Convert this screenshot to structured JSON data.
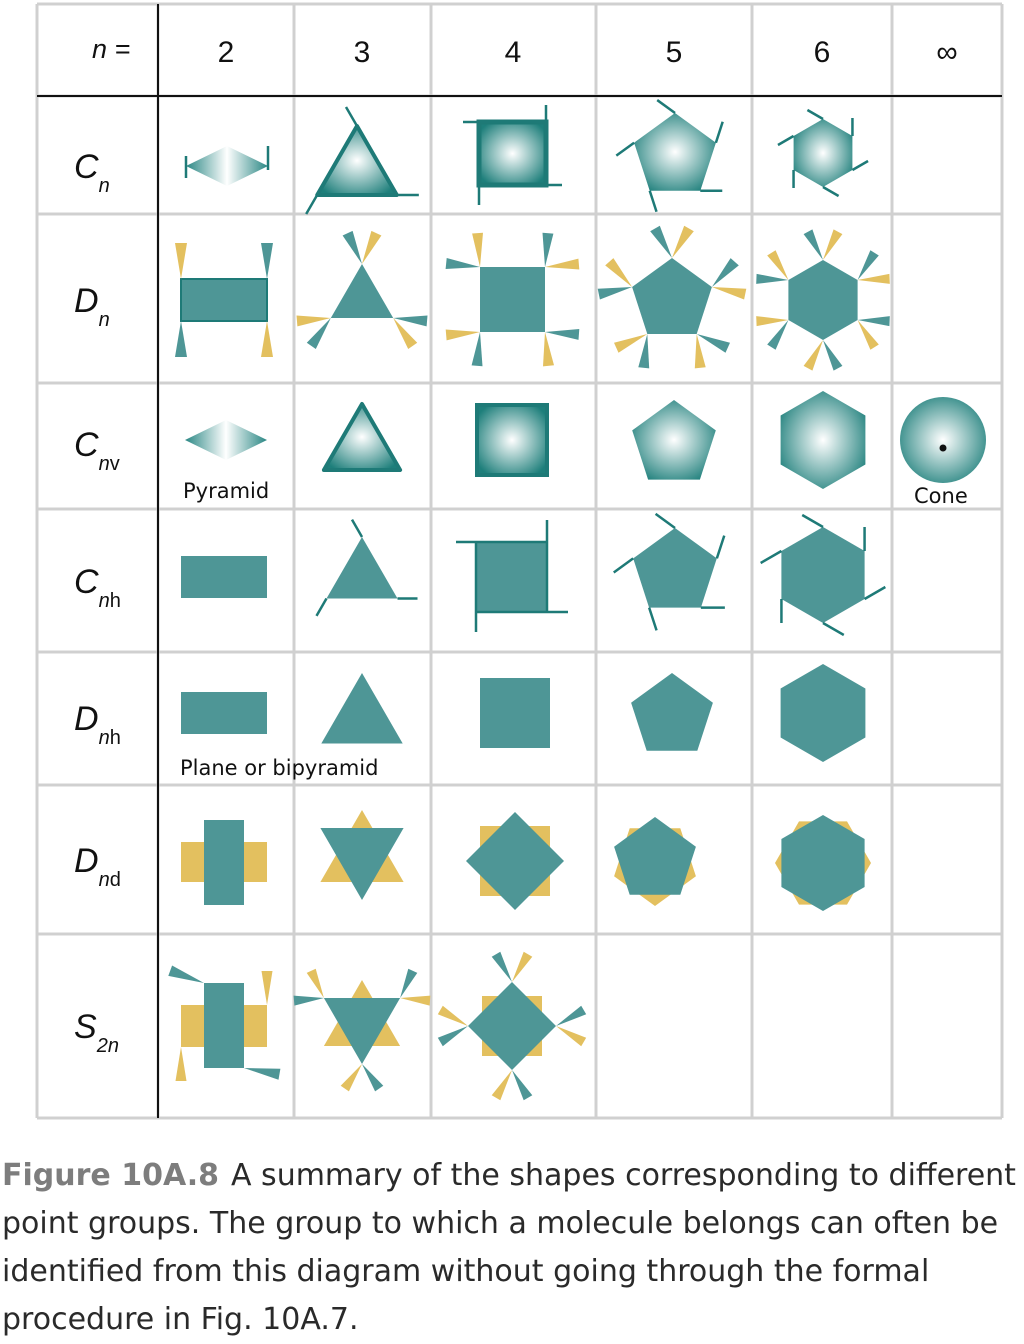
{
  "header": {
    "n_label": "n =",
    "columns": [
      "2",
      "3",
      "4",
      "5",
      "6",
      "∞"
    ]
  },
  "rows": [
    {
      "id": "Cn",
      "symbol": "C",
      "subscript": "n"
    },
    {
      "id": "Dn",
      "symbol": "D",
      "subscript": "n"
    },
    {
      "id": "Cnv",
      "symbol": "C",
      "subscript": "nv"
    },
    {
      "id": "Cnh",
      "symbol": "C",
      "subscript": "nh"
    },
    {
      "id": "Dnh",
      "symbol": "D",
      "subscript": "nh"
    },
    {
      "id": "Dnd",
      "symbol": "D",
      "subscript": "nd"
    },
    {
      "id": "S2n",
      "symbol": "S",
      "subscript": "2n"
    }
  ],
  "annotations": {
    "pyramid": "Pyramid",
    "cone": "Cone",
    "plane_or_bipyramid": "Plane or bipyramid"
  },
  "caption": {
    "label": "Figure 10A.8",
    "text": "A summary of the shapes corresponding to different point groups. The group to which a molecule belongs can often be identified from this diagram without going through the formal procedure in Fig. 10A.7."
  },
  "colors": {
    "teal": "#4e9696",
    "teal_dark": "#1e7a77",
    "gold": "#e3c05f",
    "grid": "#d0d0d0",
    "black": "#111111"
  }
}
